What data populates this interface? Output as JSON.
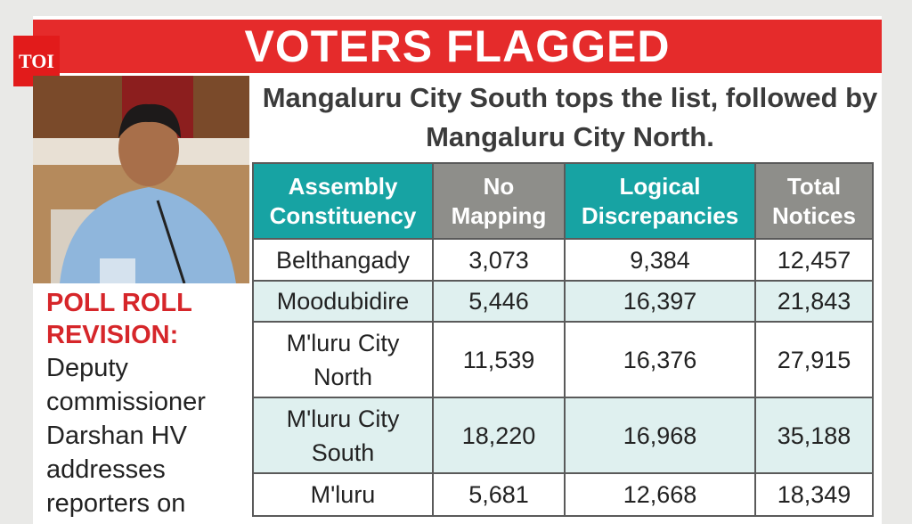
{
  "logo": "TOI",
  "banner": "VOTERS FLAGGED",
  "subtitle": "Mangaluru City South tops the list, followed by Mangaluru City North.",
  "caption": {
    "label": "POLL ROLL REVISION:",
    "text": "Deputy commissioner Darshan HV addresses reporters on"
  },
  "table": {
    "columns": [
      "Assembly Constituency",
      "No Mapping",
      "Logical Discrepancies",
      "Total Notices"
    ],
    "rows": [
      [
        "Belthangady",
        "3,073",
        "9,384",
        "12,457"
      ],
      [
        "Moodubidire",
        "5,446",
        "16,397",
        "21,843"
      ],
      [
        "M'luru City North",
        "11,539",
        "16,376",
        "27,915"
      ],
      [
        "M'luru City South",
        "18,220",
        "16,968",
        "35,188"
      ],
      [
        "M'luru",
        "5,681",
        "12,668",
        "18,349"
      ]
    ]
  }
}
